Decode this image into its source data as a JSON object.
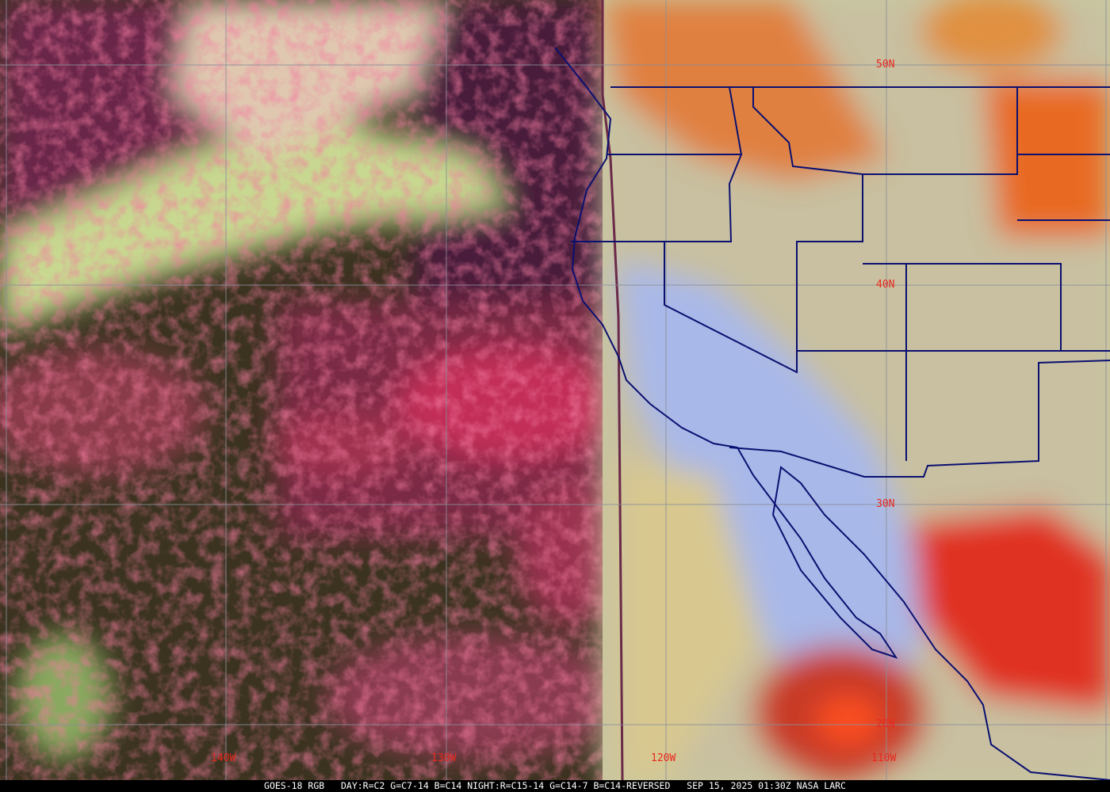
{
  "caption": {
    "satellite": "GOES-18 RGB",
    "recipe": "DAY:R=C2 G=C7-14 B=C14 NIGHT:R=C15-14 G=C14-7 B=C14-REVERSED",
    "timestamp": "SEP 15, 2025 01:30Z",
    "credit": "NASA LARC"
  },
  "grid": {
    "latitude_labels": [
      "50N",
      "40N",
      "30N",
      "20N"
    ],
    "longitude_labels": [
      "140W",
      "130W",
      "120W",
      "110W"
    ],
    "line_color": "#8a8f9a",
    "label_color": "#e8281e"
  },
  "map": {
    "border_color": "#0a1070",
    "night_side_colors": [
      "#5a1a3a",
      "#3a3a1e",
      "#d8406a",
      "#c8f090"
    ],
    "day_side_colors": [
      "#d8c890",
      "#a8c0f0",
      "#e06030",
      "#f03020"
    ]
  }
}
